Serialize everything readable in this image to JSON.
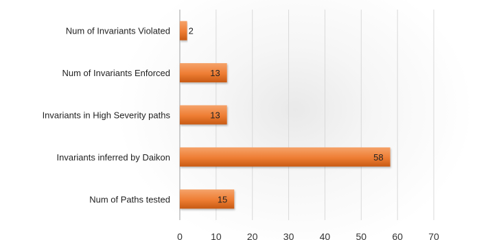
{
  "chart_data": {
    "type": "bar",
    "orientation": "horizontal",
    "title": "",
    "xlabel": "",
    "ylabel": "",
    "categories": [
      "Num of Invariants Violated",
      "Num of Invariants Enforced",
      "Invariants in High Severity paths",
      "Invariants inferred by Daikon",
      "Num of Paths tested"
    ],
    "values": [
      2,
      13,
      13,
      58,
      15
    ],
    "data_labels": [
      "2",
      "13",
      "13",
      "58",
      "15"
    ],
    "xlim": [
      0,
      70
    ],
    "xticks": [
      "0",
      "10",
      "20",
      "30",
      "40",
      "50",
      "60",
      "70"
    ],
    "grid": "vertical",
    "legend": "none",
    "colors": {
      "bar": "#ee7d33",
      "bar_light": "#f5a36a",
      "bar_dark": "#c85a14",
      "gridline": "#d9d9d9",
      "axis": "#b0b0b0"
    }
  }
}
